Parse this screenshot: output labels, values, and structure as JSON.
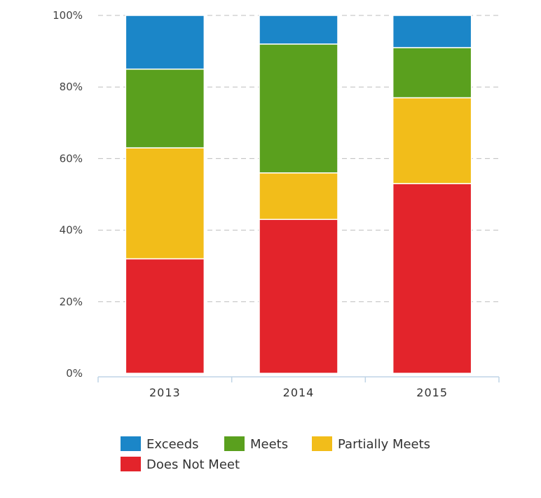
{
  "chart_data": {
    "type": "bar",
    "stacked": true,
    "categories": [
      "2013",
      "2014",
      "2015"
    ],
    "series": [
      {
        "name": "Does Not Meet",
        "color": "#e3242b",
        "values": [
          32,
          43,
          53
        ]
      },
      {
        "name": "Partially Meets",
        "color": "#f2bd1a",
        "values": [
          31,
          13,
          24
        ]
      },
      {
        "name": "Meets",
        "color": "#5aa01e",
        "values": [
          22,
          36,
          14
        ]
      },
      {
        "name": "Exceeds",
        "color": "#1b86c8",
        "values": [
          15,
          8,
          9
        ]
      }
    ],
    "ylim": [
      0,
      100
    ],
    "y_tick_labels": [
      "0%",
      "20%",
      "40%",
      "60%",
      "80%",
      "100%"
    ],
    "grid": true,
    "legend_position": "bottom",
    "legend_order": [
      "Exceeds",
      "Meets",
      "Partially Meets",
      "Does Not Meet"
    ]
  }
}
